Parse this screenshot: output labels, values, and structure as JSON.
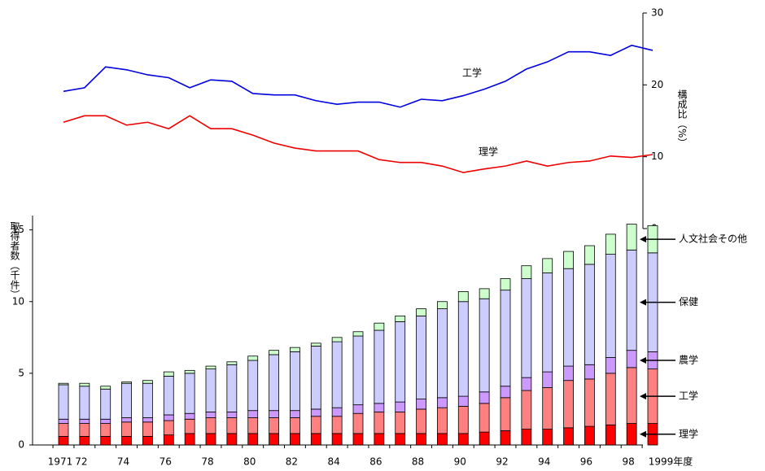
{
  "chart_data": [
    {
      "type": "line",
      "ylabel": "構成比（%）",
      "ylim": [
        0,
        30
      ],
      "yticks": [
        0,
        10,
        20,
        30
      ],
      "series": [
        {
          "name": "工学",
          "color": "#0000dd",
          "values": [
            19.1,
            19.6,
            22.5,
            22.1,
            21.4,
            21.0,
            19.6,
            20.7,
            20.5,
            18.8,
            18.6,
            18.6,
            17.8,
            17.3,
            17.6,
            17.6,
            16.9,
            18.0,
            17.8,
            18.5,
            19.4,
            20.5,
            22.2,
            23.2,
            24.6,
            24.6,
            24.1,
            25.5,
            24.8
          ]
        },
        {
          "name": "理学",
          "color": "#ee0000",
          "values": [
            14.8,
            15.7,
            15.7,
            14.4,
            14.8,
            13.9,
            15.7,
            13.9,
            13.9,
            13.0,
            11.9,
            11.2,
            10.8,
            10.8,
            10.8,
            9.6,
            9.2,
            9.2,
            8.7,
            7.8,
            8.3,
            8.7,
            9.4,
            8.7,
            9.2,
            9.4,
            10.1,
            9.9,
            10.3
          ]
        }
      ]
    },
    {
      "type": "stacked_bar",
      "ylabel": "取得者数（千件）",
      "ylim": [
        0,
        16
      ],
      "yticks": [
        0,
        5,
        10,
        15
      ],
      "categories": [
        "1971",
        "72",
        null,
        "74",
        null,
        "76",
        null,
        "78",
        null,
        "80",
        null,
        "82",
        null,
        "84",
        null,
        "86",
        null,
        "88",
        null,
        "90",
        null,
        "92",
        null,
        "94",
        null,
        "96",
        null,
        "98",
        "1999年度"
      ],
      "series": [
        {
          "name": "理学",
          "color": "#ff0000",
          "values": [
            0.6,
            0.6,
            0.6,
            0.6,
            0.6,
            0.7,
            0.8,
            0.8,
            0.8,
            0.8,
            0.8,
            0.8,
            0.8,
            0.8,
            0.8,
            0.8,
            0.8,
            0.8,
            0.8,
            0.8,
            0.9,
            1.0,
            1.1,
            1.1,
            1.2,
            1.3,
            1.4,
            1.5,
            1.5
          ]
        },
        {
          "name": "工学",
          "color": "#ff8080",
          "values": [
            0.9,
            0.9,
            0.9,
            1.0,
            1.0,
            1.0,
            1.0,
            1.1,
            1.1,
            1.1,
            1.1,
            1.1,
            1.2,
            1.2,
            1.4,
            1.5,
            1.5,
            1.7,
            1.8,
            1.9,
            2.0,
            2.3,
            2.7,
            2.9,
            3.3,
            3.3,
            3.6,
            3.9,
            3.8
          ]
        },
        {
          "name": "農学",
          "color": "#cc99ff",
          "values": [
            0.3,
            0.3,
            0.3,
            0.3,
            0.3,
            0.4,
            0.4,
            0.4,
            0.4,
            0.5,
            0.5,
            0.5,
            0.5,
            0.6,
            0.6,
            0.6,
            0.7,
            0.7,
            0.7,
            0.7,
            0.8,
            0.8,
            0.9,
            1.1,
            1.0,
            1.0,
            1.1,
            1.2,
            1.2
          ]
        },
        {
          "name": "保健",
          "color": "#ccccff",
          "values": [
            2.4,
            2.3,
            2.1,
            2.4,
            2.4,
            2.7,
            2.8,
            3.0,
            3.3,
            3.5,
            3.9,
            4.1,
            4.4,
            4.6,
            4.8,
            5.1,
            5.6,
            5.8,
            6.2,
            6.6,
            6.5,
            6.7,
            6.9,
            6.9,
            6.8,
            7.0,
            7.2,
            7.0,
            6.9
          ]
        },
        {
          "name": "人文社会その他",
          "color": "#ccffcc",
          "values": [
            0.1,
            0.2,
            0.2,
            0.1,
            0.2,
            0.3,
            0.2,
            0.2,
            0.2,
            0.3,
            0.3,
            0.3,
            0.2,
            0.3,
            0.3,
            0.5,
            0.4,
            0.5,
            0.5,
            0.7,
            0.7,
            0.8,
            0.9,
            1.0,
            1.2,
            1.3,
            1.4,
            1.8,
            1.9
          ]
        }
      ]
    }
  ]
}
